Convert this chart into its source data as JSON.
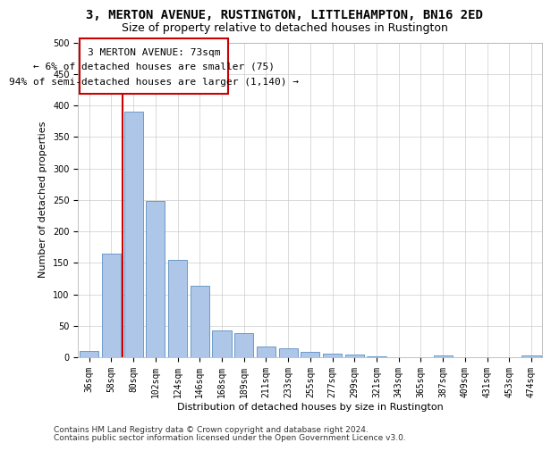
{
  "title1": "3, MERTON AVENUE, RUSTINGTON, LITTLEHAMPTON, BN16 2ED",
  "title2": "Size of property relative to detached houses in Rustington",
  "xlabel": "Distribution of detached houses by size in Rustington",
  "ylabel": "Number of detached properties",
  "categories": [
    "36sqm",
    "58sqm",
    "80sqm",
    "102sqm",
    "124sqm",
    "146sqm",
    "168sqm",
    "189sqm",
    "211sqm",
    "233sqm",
    "255sqm",
    "277sqm",
    "299sqm",
    "321sqm",
    "343sqm",
    "365sqm",
    "387sqm",
    "409sqm",
    "431sqm",
    "453sqm",
    "474sqm"
  ],
  "values": [
    10,
    165,
    390,
    248,
    155,
    113,
    42,
    38,
    17,
    14,
    8,
    6,
    4,
    2,
    0,
    0,
    3,
    0,
    0,
    0,
    3
  ],
  "bar_color": "#aec6e8",
  "bar_edge_color": "#5a8fc0",
  "vline_color": "#cc0000",
  "annotation_line1": "3 MERTON AVENUE: 73sqm",
  "annotation_line2": "← 6% of detached houses are smaller (75)",
  "annotation_line3": "94% of semi-detached houses are larger (1,140) →",
  "annotation_box_color": "#cc0000",
  "ylim": [
    0,
    500
  ],
  "yticks": [
    0,
    50,
    100,
    150,
    200,
    250,
    300,
    350,
    400,
    450,
    500
  ],
  "footer1": "Contains HM Land Registry data © Crown copyright and database right 2024.",
  "footer2": "Contains public sector information licensed under the Open Government Licence v3.0.",
  "background_color": "#ffffff",
  "grid_color": "#cccccc",
  "title1_fontsize": 10,
  "title2_fontsize": 9,
  "xlabel_fontsize": 8,
  "ylabel_fontsize": 8,
  "tick_fontsize": 7,
  "annotation_fontsize": 8,
  "footer_fontsize": 6.5
}
